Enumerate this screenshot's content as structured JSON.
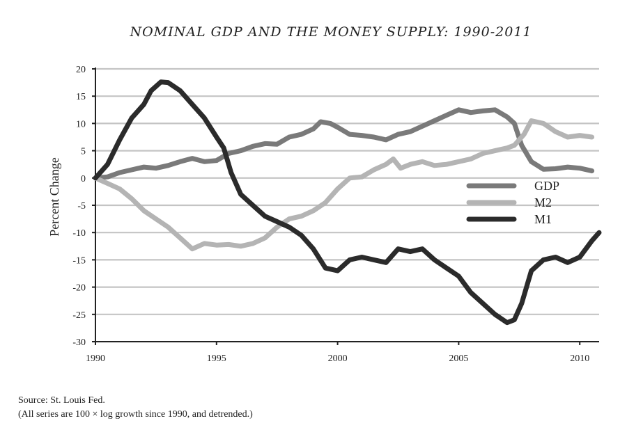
{
  "chart_data": {
    "type": "line",
    "title": "NOMINAL GDP AND THE MONEY SUPPLY: 1990-2011",
    "ylabel": "Percent Change",
    "xlabel": "",
    "xlim": [
      1990,
      2010.8
    ],
    "ylim": [
      -30,
      20
    ],
    "xticks": [
      1990,
      1995,
      2000,
      2005,
      2010
    ],
    "yticks": [
      20,
      15,
      10,
      5,
      0,
      -5,
      -10,
      -15,
      -20,
      -25,
      -30
    ],
    "grid": true,
    "legend_position": "center-right",
    "series": [
      {
        "name": "GDP",
        "color": "#7a7a7a",
        "points": [
          [
            1990,
            0
          ],
          [
            1990.5,
            0.2
          ],
          [
            1991,
            1
          ],
          [
            1991.5,
            1.5
          ],
          [
            1992,
            2
          ],
          [
            1992.5,
            1.8
          ],
          [
            1993,
            2.3
          ],
          [
            1993.5,
            3
          ],
          [
            1994,
            3.6
          ],
          [
            1994.5,
            3
          ],
          [
            1995,
            3.2
          ],
          [
            1995.5,
            4.5
          ],
          [
            1996,
            5
          ],
          [
            1996.5,
            5.8
          ],
          [
            1997,
            6.3
          ],
          [
            1997.5,
            6.2
          ],
          [
            1998,
            7.5
          ],
          [
            1998.5,
            8
          ],
          [
            1999,
            9
          ],
          [
            1999.3,
            10.3
          ],
          [
            1999.7,
            10
          ],
          [
            2000,
            9.3
          ],
          [
            2000.5,
            8
          ],
          [
            2001,
            7.8
          ],
          [
            2001.5,
            7.5
          ],
          [
            2002,
            7
          ],
          [
            2002.5,
            8
          ],
          [
            2003,
            8.5
          ],
          [
            2003.5,
            9.5
          ],
          [
            2004,
            10.5
          ],
          [
            2004.5,
            11.5
          ],
          [
            2005,
            12.5
          ],
          [
            2005.5,
            12
          ],
          [
            2006,
            12.3
          ],
          [
            2006.5,
            12.5
          ],
          [
            2007,
            11.2
          ],
          [
            2007.3,
            10
          ],
          [
            2007.6,
            6
          ],
          [
            2008,
            3
          ],
          [
            2008.5,
            1.6
          ],
          [
            2009,
            1.7
          ],
          [
            2009.5,
            2
          ],
          [
            2010,
            1.8
          ],
          [
            2010.5,
            1.3
          ]
        ]
      },
      {
        "name": "M2",
        "color": "#b4b4b4",
        "points": [
          [
            1990,
            0
          ],
          [
            1990.5,
            -1
          ],
          [
            1991,
            -2
          ],
          [
            1991.5,
            -3.8
          ],
          [
            1992,
            -6
          ],
          [
            1992.5,
            -7.5
          ],
          [
            1993,
            -9
          ],
          [
            1993.5,
            -11
          ],
          [
            1994,
            -13
          ],
          [
            1994.5,
            -12
          ],
          [
            1995,
            -12.3
          ],
          [
            1995.5,
            -12.2
          ],
          [
            1996,
            -12.5
          ],
          [
            1996.5,
            -12
          ],
          [
            1997,
            -11
          ],
          [
            1997.5,
            -9
          ],
          [
            1998,
            -7.5
          ],
          [
            1998.5,
            -7
          ],
          [
            1999,
            -6
          ],
          [
            1999.5,
            -4.5
          ],
          [
            2000,
            -2
          ],
          [
            2000.5,
            0
          ],
          [
            2001,
            0.2
          ],
          [
            2001.5,
            1.5
          ],
          [
            2002,
            2.5
          ],
          [
            2002.3,
            3.5
          ],
          [
            2002.6,
            1.8
          ],
          [
            2003,
            2.5
          ],
          [
            2003.5,
            3
          ],
          [
            2004,
            2.3
          ],
          [
            2004.5,
            2.5
          ],
          [
            2005,
            3
          ],
          [
            2005.5,
            3.5
          ],
          [
            2006,
            4.5
          ],
          [
            2006.5,
            5
          ],
          [
            2007,
            5.5
          ],
          [
            2007.3,
            6
          ],
          [
            2007.7,
            8
          ],
          [
            2008,
            10.5
          ],
          [
            2008.5,
            10
          ],
          [
            2009,
            8.5
          ],
          [
            2009.5,
            7.5
          ],
          [
            2010,
            7.8
          ],
          [
            2010.5,
            7.5
          ]
        ]
      },
      {
        "name": "M1",
        "color": "#2b2b2b",
        "points": [
          [
            1990,
            0
          ],
          [
            1990.5,
            2.5
          ],
          [
            1991,
            7
          ],
          [
            1991.5,
            11
          ],
          [
            1992,
            13.5
          ],
          [
            1992.3,
            16
          ],
          [
            1992.7,
            17.6
          ],
          [
            1993,
            17.5
          ],
          [
            1993.5,
            16
          ],
          [
            1994,
            13.5
          ],
          [
            1994.5,
            11
          ],
          [
            1995,
            7.5
          ],
          [
            1995.3,
            5.5
          ],
          [
            1995.6,
            1
          ],
          [
            1996,
            -3
          ],
          [
            1996.5,
            -5
          ],
          [
            1997,
            -7
          ],
          [
            1997.5,
            -8
          ],
          [
            1998,
            -9
          ],
          [
            1998.5,
            -10.5
          ],
          [
            1999,
            -13
          ],
          [
            1999.5,
            -16.5
          ],
          [
            2000,
            -17
          ],
          [
            2000.5,
            -15
          ],
          [
            2001,
            -14.5
          ],
          [
            2001.5,
            -15
          ],
          [
            2002,
            -15.5
          ],
          [
            2002.3,
            -14
          ],
          [
            2002.5,
            -13
          ],
          [
            2003,
            -13.5
          ],
          [
            2003.5,
            -13
          ],
          [
            2004,
            -15
          ],
          [
            2004.5,
            -16.5
          ],
          [
            2005,
            -18
          ],
          [
            2005.5,
            -21
          ],
          [
            2006,
            -23
          ],
          [
            2006.5,
            -25
          ],
          [
            2007,
            -26.5
          ],
          [
            2007.3,
            -26
          ],
          [
            2007.6,
            -23
          ],
          [
            2008,
            -17
          ],
          [
            2008.5,
            -15
          ],
          [
            2009,
            -14.5
          ],
          [
            2009.5,
            -15.5
          ],
          [
            2010,
            -14.5
          ],
          [
            2010.5,
            -11.5
          ],
          [
            2010.8,
            -10
          ]
        ]
      }
    ]
  },
  "source": {
    "line1": "Source: St. Louis Fed.",
    "line2": "(All series are 100 × log growth since 1990, and detrended.)"
  }
}
